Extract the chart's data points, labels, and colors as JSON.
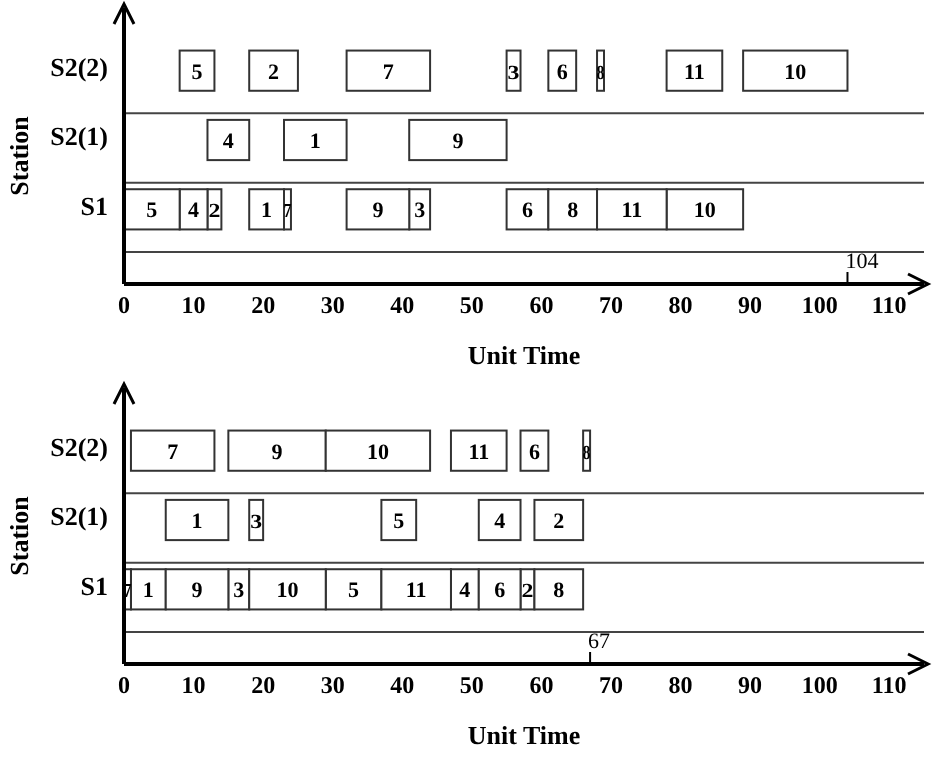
{
  "chart_data": [
    {
      "type": "bar",
      "orientation": "horizontal",
      "categories": [
        "S2(2)",
        "S2(1)",
        "S1"
      ],
      "xlabel": "Unit Time",
      "ylabel": "Station",
      "xlim": [
        0,
        115
      ],
      "xticks": [
        0,
        10,
        20,
        30,
        40,
        50,
        60,
        70,
        80,
        90,
        100,
        110
      ],
      "grid": "y",
      "annotations": [
        "104"
      ],
      "series": [
        {
          "name": "1",
          "color": "#ffffff",
          "values": [
            null,
            9,
            5
          ],
          "base": [
            null,
            23,
            18
          ]
        },
        {
          "name": "2",
          "color": "#ffffff",
          "values": [
            7,
            null,
            2
          ],
          "base": [
            18,
            null,
            12
          ]
        },
        {
          "name": "3",
          "color": "#ffffff",
          "values": [
            2,
            null,
            3
          ],
          "base": [
            55,
            null,
            41
          ]
        },
        {
          "name": "4",
          "color": "#ffffff",
          "values": [
            null,
            6,
            4
          ],
          "base": [
            null,
            12,
            8
          ]
        },
        {
          "name": "5",
          "color": "#ffffff",
          "values": [
            5,
            null,
            8
          ],
          "base": [
            8,
            null,
            0
          ]
        },
        {
          "name": "6",
          "color": "#ffffff",
          "values": [
            4,
            null,
            6
          ],
          "base": [
            61,
            null,
            55
          ]
        },
        {
          "name": "7",
          "color": "#ffffff",
          "values": [
            12,
            null,
            1
          ],
          "base": [
            32,
            null,
            23
          ]
        },
        {
          "name": "8",
          "color": "#ffffff",
          "values": [
            1,
            null,
            7
          ],
          "base": [
            68,
            null,
            61
          ]
        },
        {
          "name": "9",
          "color": "#ffffff",
          "values": [
            null,
            14,
            9
          ],
          "base": [
            null,
            41,
            32
          ]
        },
        {
          "name": "10",
          "color": "#ffffff",
          "values": [
            15,
            null,
            11
          ],
          "base": [
            89,
            null,
            78
          ]
        },
        {
          "name": "11",
          "color": "#ffffff",
          "values": [
            8,
            null,
            10
          ],
          "base": [
            78,
            null,
            68
          ]
        }
      ]
    },
    {
      "type": "bar",
      "orientation": "horizontal",
      "categories": [
        "S2(2)",
        "S2(1)",
        "S1"
      ],
      "xlabel": "Unit Time",
      "ylabel": "Station",
      "xlim": [
        0,
        115
      ],
      "xticks": [
        0,
        10,
        20,
        30,
        40,
        50,
        60,
        70,
        80,
        90,
        100,
        110
      ],
      "grid": "y",
      "annotations": [
        "67"
      ],
      "series": [
        {
          "name": "1",
          "color": "#ffffff",
          "values": [
            null,
            9,
            5
          ],
          "base": [
            null,
            6,
            1
          ]
        },
        {
          "name": "2",
          "color": "#ffffff",
          "values": [
            null,
            7,
            2
          ],
          "base": [
            null,
            59,
            57
          ]
        },
        {
          "name": "3",
          "color": "#ffffff",
          "values": [
            null,
            2,
            3
          ],
          "base": [
            null,
            18,
            15
          ]
        },
        {
          "name": "4",
          "color": "#ffffff",
          "values": [
            null,
            6,
            4
          ],
          "base": [
            null,
            51,
            47
          ]
        },
        {
          "name": "5",
          "color": "#ffffff",
          "values": [
            null,
            5,
            8
          ],
          "base": [
            null,
            37,
            29
          ]
        },
        {
          "name": "6",
          "color": "#ffffff",
          "values": [
            4,
            null,
            6
          ],
          "base": [
            57,
            null,
            51
          ]
        },
        {
          "name": "7",
          "color": "#ffffff",
          "values": [
            12,
            null,
            1
          ],
          "base": [
            1,
            null,
            0
          ]
        },
        {
          "name": "8",
          "color": "#ffffff",
          "values": [
            1,
            null,
            7
          ],
          "base": [
            66,
            null,
            59
          ]
        },
        {
          "name": "9",
          "color": "#ffffff",
          "values": [
            14,
            null,
            9
          ],
          "base": [
            15,
            null,
            6
          ]
        },
        {
          "name": "10",
          "color": "#ffffff",
          "values": [
            15,
            null,
            11
          ],
          "base": [
            29,
            null,
            18
          ]
        },
        {
          "name": "11",
          "color": "#ffffff",
          "values": [
            8,
            null,
            10
          ],
          "base": [
            47,
            null,
            37
          ]
        }
      ]
    }
  ]
}
